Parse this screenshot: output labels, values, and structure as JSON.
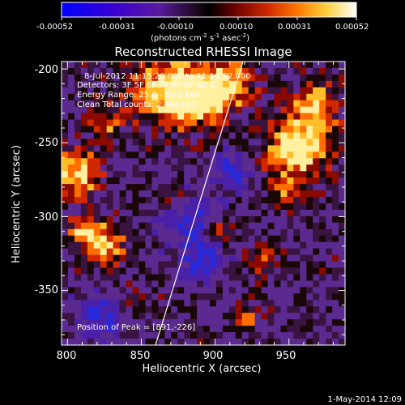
{
  "colorbar": {
    "tick_labels": [
      "-0.00052",
      "-0.00031",
      "-0.00010",
      "0.00010",
      "0.00031",
      "0.00052"
    ],
    "units": "(photons cm",
    "units_exp1": "-2",
    "units_mid": " s",
    "units_exp2": "-1",
    "units_end": " asec",
    "units_exp3": "-2",
    "units_close": ")",
    "colors": [
      "#0000ff",
      "#4000c8",
      "#5a1a9e",
      "#2a0a2a",
      "#000000",
      "#5a0000",
      "#c81e00",
      "#ff6400",
      "#ffb400",
      "#ffff64",
      "#ffffff"
    ]
  },
  "plot": {
    "title": "Reconstructed RHESSI Image",
    "xlabel": "Heliocentric X (arcsec)",
    "ylabel": "Heliocentric Y (arcsec)",
    "x_ticks": [
      "800",
      "850",
      "900",
      "950"
    ],
    "y_ticks": [
      "-200",
      "-250",
      "-300",
      "-350"
    ],
    "xlim": [
      796,
      988
    ],
    "ylim": [
      -387,
      -195
    ]
  },
  "info": {
    "time_range": "8-Jul-2012 11:15:20.000 to 11:16:52.000",
    "detectors": "Detectors: 3F 5F 6F 7F 8F 9F  Att 0",
    "energy": "Energy Range: 25.0 - 50.0 keV",
    "clean": "Clean     Total counts: 2.46e+03",
    "peak": "Position of Peak = [891,-226]"
  },
  "footer": {
    "date": "1-May-2014 12:09"
  }
}
